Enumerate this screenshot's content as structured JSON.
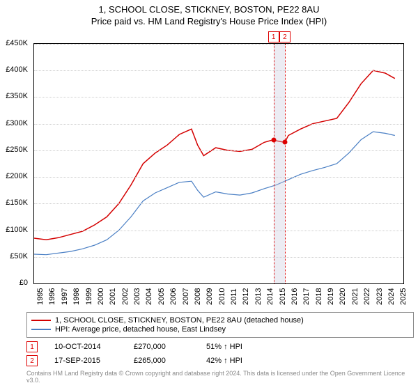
{
  "title": "1, SCHOOL CLOSE, STICKNEY, BOSTON, PE22 8AU",
  "subtitle": "Price paid vs. HM Land Registry's House Price Index (HPI)",
  "chart": {
    "type": "line",
    "background_color": "#ffffff",
    "grid_color": "#cccccc",
    "border_color": "#000000",
    "xlim": [
      1995,
      2025.5
    ],
    "ylim": [
      0,
      450000
    ],
    "ytick_step": 50000,
    "yticks": [
      "£0",
      "£50K",
      "£100K",
      "£150K",
      "£200K",
      "£250K",
      "£300K",
      "£350K",
      "£400K",
      "£450K"
    ],
    "xticks": [
      "1995",
      "1996",
      "1997",
      "1998",
      "1999",
      "2000",
      "2001",
      "2002",
      "2003",
      "2004",
      "2005",
      "2006",
      "2007",
      "2008",
      "2009",
      "2010",
      "2011",
      "2012",
      "2013",
      "2014",
      "2015",
      "2016",
      "2017",
      "2018",
      "2019",
      "2020",
      "2021",
      "2022",
      "2023",
      "2024",
      "2025"
    ],
    "series": [
      {
        "name": "1, SCHOOL CLOSE, STICKNEY, BOSTON, PE22 8AU (detached house)",
        "color": "#d40000",
        "line_width": 1.5,
        "data": [
          [
            1995,
            85000
          ],
          [
            1996,
            82000
          ],
          [
            1997,
            86000
          ],
          [
            1998,
            92000
          ],
          [
            1999,
            98000
          ],
          [
            2000,
            110000
          ],
          [
            2001,
            125000
          ],
          [
            2002,
            150000
          ],
          [
            2003,
            185000
          ],
          [
            2004,
            225000
          ],
          [
            2005,
            245000
          ],
          [
            2006,
            260000
          ],
          [
            2007,
            280000
          ],
          [
            2008,
            290000
          ],
          [
            2008.5,
            260000
          ],
          [
            2009,
            240000
          ],
          [
            2010,
            255000
          ],
          [
            2011,
            250000
          ],
          [
            2012,
            248000
          ],
          [
            2013,
            252000
          ],
          [
            2014,
            265000
          ],
          [
            2014.78,
            270000
          ],
          [
            2015,
            268000
          ],
          [
            2015.71,
            265000
          ],
          [
            2016,
            278000
          ],
          [
            2017,
            290000
          ],
          [
            2018,
            300000
          ],
          [
            2019,
            305000
          ],
          [
            2020,
            310000
          ],
          [
            2021,
            340000
          ],
          [
            2022,
            375000
          ],
          [
            2023,
            400000
          ],
          [
            2024,
            395000
          ],
          [
            2024.8,
            385000
          ]
        ]
      },
      {
        "name": "HPI: Average price, detached house, East Lindsey",
        "color": "#4a7fc4",
        "line_width": 1.2,
        "data": [
          [
            1995,
            55000
          ],
          [
            1996,
            54000
          ],
          [
            1997,
            57000
          ],
          [
            1998,
            60000
          ],
          [
            1999,
            65000
          ],
          [
            2000,
            72000
          ],
          [
            2001,
            82000
          ],
          [
            2002,
            100000
          ],
          [
            2003,
            125000
          ],
          [
            2004,
            155000
          ],
          [
            2005,
            170000
          ],
          [
            2006,
            180000
          ],
          [
            2007,
            190000
          ],
          [
            2008,
            192000
          ],
          [
            2008.5,
            175000
          ],
          [
            2009,
            162000
          ],
          [
            2010,
            172000
          ],
          [
            2011,
            168000
          ],
          [
            2012,
            166000
          ],
          [
            2013,
            170000
          ],
          [
            2014,
            178000
          ],
          [
            2015,
            185000
          ],
          [
            2016,
            195000
          ],
          [
            2017,
            205000
          ],
          [
            2018,
            212000
          ],
          [
            2019,
            218000
          ],
          [
            2020,
            225000
          ],
          [
            2021,
            245000
          ],
          [
            2022,
            270000
          ],
          [
            2023,
            285000
          ],
          [
            2024,
            282000
          ],
          [
            2024.8,
            278000
          ]
        ]
      }
    ],
    "markers": [
      {
        "id": "1",
        "x": 2014.78,
        "y": 270000
      },
      {
        "id": "2",
        "x": 2015.71,
        "y": 265000
      }
    ]
  },
  "legend": {
    "items": [
      {
        "color": "#d40000",
        "label": "1, SCHOOL CLOSE, STICKNEY, BOSTON, PE22 8AU (detached house)"
      },
      {
        "color": "#4a7fc4",
        "label": "HPI: Average price, detached house, East Lindsey"
      }
    ]
  },
  "transactions": [
    {
      "id": "1",
      "date": "10-OCT-2014",
      "price": "£270,000",
      "hpi": "51% ↑ HPI"
    },
    {
      "id": "2",
      "date": "17-SEP-2015",
      "price": "£265,000",
      "hpi": "42% ↑ HPI"
    }
  ],
  "attribution": "Contains HM Land Registry data © Crown copyright and database right 2024.\nThis data is licensed under the Open Government Licence v3.0."
}
